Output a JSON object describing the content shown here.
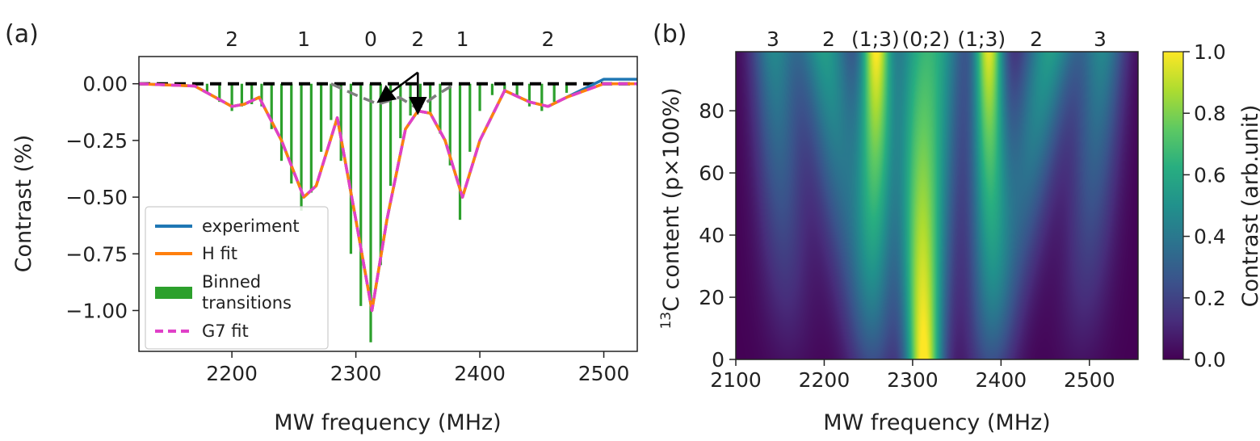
{
  "panels": {
    "a": {
      "label": "(a)"
    },
    "b": {
      "label": "(b)"
    }
  },
  "chart_data": [
    {
      "type": "line",
      "panel": "a",
      "title": "",
      "xlabel": "MW frequency (MHz)",
      "ylabel": "Contrast (%)",
      "xlim": [
        2125,
        2527
      ],
      "ylim": [
        -1.18,
        0.12
      ],
      "x_ticks": [
        2200,
        2300,
        2400,
        2500
      ],
      "y_ticks": [
        0.0,
        -0.25,
        -0.5,
        -0.75,
        -1.0
      ],
      "y_tick_labels": [
        "0.00",
        "−0.25",
        "−0.50",
        "−0.75",
        "−1.00"
      ],
      "top_labels": [
        {
          "x": 2200,
          "text": "2"
        },
        {
          "x": 2258,
          "text": "1"
        },
        {
          "x": 2312,
          "text": "0"
        },
        {
          "x": 2350,
          "text": "2"
        },
        {
          "x": 2386,
          "text": "1"
        },
        {
          "x": 2455,
          "text": "2"
        }
      ],
      "arrows": {
        "from": [
          2350,
          0.05
        ],
        "to": [
          [
            2318,
            -0.08
          ],
          [
            2350,
            -0.13
          ]
        ]
      },
      "series": [
        {
          "name": "experiment",
          "color": "#1f77b4",
          "x": [
            2125,
            2170,
            2190,
            2200,
            2210,
            2222,
            2240,
            2258,
            2268,
            2285,
            2300,
            2313,
            2325,
            2340,
            2350,
            2360,
            2372,
            2386,
            2400,
            2420,
            2440,
            2455,
            2470,
            2500,
            2527
          ],
          "y": [
            0.0,
            -0.01,
            -0.07,
            -0.1,
            -0.09,
            -0.06,
            -0.25,
            -0.5,
            -0.45,
            -0.15,
            -0.6,
            -1.0,
            -0.6,
            -0.2,
            -0.12,
            -0.13,
            -0.25,
            -0.5,
            -0.25,
            -0.03,
            -0.08,
            -0.1,
            -0.06,
            0.02,
            0.02
          ]
        },
        {
          "name": "H fit",
          "color": "#ff7f0e",
          "x": [
            2125,
            2170,
            2190,
            2200,
            2210,
            2222,
            2240,
            2258,
            2268,
            2285,
            2300,
            2313,
            2325,
            2340,
            2350,
            2360,
            2372,
            2386,
            2400,
            2420,
            2440,
            2455,
            2470,
            2500,
            2527
          ],
          "y": [
            0.0,
            -0.01,
            -0.07,
            -0.1,
            -0.09,
            -0.06,
            -0.25,
            -0.5,
            -0.45,
            -0.15,
            -0.6,
            -1.0,
            -0.6,
            -0.2,
            -0.12,
            -0.13,
            -0.25,
            -0.5,
            -0.25,
            -0.03,
            -0.08,
            -0.1,
            -0.06,
            0.0,
            0.0
          ]
        },
        {
          "name": "G7 fit",
          "color": "#e040c8",
          "dashed": true,
          "x": [
            2125,
            2170,
            2190,
            2200,
            2210,
            2222,
            2240,
            2258,
            2268,
            2285,
            2300,
            2313,
            2325,
            2340,
            2350,
            2360,
            2372,
            2386,
            2400,
            2420,
            2440,
            2455,
            2470,
            2500,
            2527
          ],
          "y": [
            0.0,
            -0.01,
            -0.07,
            -0.1,
            -0.09,
            -0.06,
            -0.25,
            -0.5,
            -0.45,
            -0.15,
            -0.6,
            -1.0,
            -0.6,
            -0.2,
            -0.12,
            -0.13,
            -0.25,
            -0.5,
            -0.25,
            -0.03,
            -0.08,
            -0.1,
            -0.06,
            0.0,
            0.0
          ]
        },
        {
          "name": "Binned transitions",
          "type": "bar",
          "color": "#2ca02c",
          "x": [
            2180,
            2190,
            2200,
            2208,
            2216,
            2224,
            2232,
            2240,
            2248,
            2256,
            2264,
            2272,
            2280,
            2288,
            2296,
            2304,
            2312,
            2320,
            2328,
            2336,
            2344,
            2352,
            2360,
            2368,
            2376,
            2384,
            2392,
            2400,
            2410,
            2420,
            2430,
            2440,
            2450,
            2460,
            2470
          ],
          "y": [
            -0.04,
            -0.08,
            -0.12,
            -0.1,
            -0.09,
            -0.1,
            -0.2,
            -0.34,
            -0.44,
            -0.56,
            -0.48,
            -0.3,
            -0.16,
            -0.34,
            -0.75,
            -0.98,
            -1.14,
            -0.8,
            -0.45,
            -0.24,
            -0.14,
            -0.1,
            -0.13,
            -0.22,
            -0.36,
            -0.6,
            -0.3,
            -0.12,
            -0.05,
            -0.04,
            -0.06,
            -0.1,
            -0.12,
            -0.08,
            -0.04
          ]
        }
      ],
      "reference_lines": [
        {
          "name": "baseline",
          "color": "#000000",
          "dashed": true,
          "x": [
            2125,
            2527
          ],
          "y": [
            0.0,
            0.0
          ]
        },
        {
          "name": "gray dashed",
          "color": "#7f7f7f",
          "dashed": true,
          "x": [
            2280,
            2300,
            2318,
            2335,
            2350,
            2365,
            2380
          ],
          "y": [
            0.0,
            -0.05,
            -0.09,
            -0.06,
            -0.11,
            -0.05,
            0.0
          ]
        }
      ],
      "legend": {
        "placement": "lower-left",
        "entries": [
          {
            "label": "experiment",
            "color": "#1f77b4",
            "style": "line"
          },
          {
            "label": "H fit",
            "color": "#ff7f0e",
            "style": "line"
          },
          {
            "label_lines": [
              "Binned",
              "transitions"
            ],
            "color": "#2ca02c",
            "style": "patch"
          },
          {
            "label": "G7 fit",
            "color": "#e040c8",
            "style": "dashed"
          }
        ]
      }
    },
    {
      "type": "heatmap",
      "panel": "b",
      "title": "",
      "xlabel": "MW frequency (MHz)",
      "ylabel_sup": "13",
      "ylabel_main": "C content (p×100%)",
      "xlim": [
        2100,
        2555
      ],
      "ylim": [
        0,
        99
      ],
      "x_ticks": [
        2100,
        2200,
        2300,
        2400,
        2500
      ],
      "y_ticks": [
        0,
        20,
        40,
        60,
        80
      ],
      "top_labels": [
        {
          "x": 2142,
          "text": "3"
        },
        {
          "x": 2205,
          "text": "2"
        },
        {
          "x": 2258,
          "text": "(1;3)"
        },
        {
          "x": 2315,
          "text": "(0;2)"
        },
        {
          "x": 2378,
          "text": "(1;3)"
        },
        {
          "x": 2440,
          "text": "2"
        },
        {
          "x": 2512,
          "text": "3"
        }
      ],
      "colorscale": "viridis",
      "colorbar": {
        "label": "Contrast (arb.unit)",
        "range": [
          0.0,
          1.0
        ],
        "ticks": [
          0.0,
          0.2,
          0.4,
          0.6,
          0.8,
          1.0
        ],
        "tick_labels": [
          "0.0",
          "0.2",
          "0.4",
          "0.6",
          "0.8",
          "1.0"
        ]
      },
      "features": [
        {
          "name": "center",
          "at_p0": {
            "x": 2312,
            "width": 14,
            "value": 1.0
          },
          "at_p100": {
            "x": 2305,
            "width": 22,
            "value": 0.5
          }
        },
        {
          "name": "left 1;3",
          "at_p0": {
            "x": 2258,
            "width": 18,
            "value": 0.15
          },
          "at_p100": {
            "x": 2258,
            "width": 12,
            "value": 0.95
          }
        },
        {
          "name": "right 1;3",
          "at_p0": {
            "x": 2386,
            "width": 18,
            "value": 0.15
          },
          "at_p100": {
            "x": 2386,
            "width": 12,
            "value": 0.95
          }
        },
        {
          "name": "left 2",
          "at_p0": {
            "x": 2245,
            "width": 22,
            "value": 0.1
          },
          "at_p100": {
            "x": 2200,
            "width": 22,
            "value": 0.55
          }
        },
        {
          "name": "right 2",
          "at_p0": {
            "x": 2395,
            "width": 22,
            "value": 0.1
          },
          "at_p100": {
            "x": 2455,
            "width": 22,
            "value": 0.55
          }
        },
        {
          "name": "shoulder",
          "at_p0": {
            "x": 2330,
            "width": 18,
            "value": 0.05
          },
          "at_p100": {
            "x": 2335,
            "width": 20,
            "value": 0.35
          }
        },
        {
          "name": "left 3",
          "at_p0": {
            "x": 2160,
            "width": 22,
            "value": 0.05
          },
          "at_p100": {
            "x": 2142,
            "width": 18,
            "value": 0.45
          }
        },
        {
          "name": "right 3",
          "at_p0": {
            "x": 2490,
            "width": 22,
            "value": 0.05
          },
          "at_p100": {
            "x": 2515,
            "width": 18,
            "value": 0.45
          }
        }
      ]
    }
  ]
}
